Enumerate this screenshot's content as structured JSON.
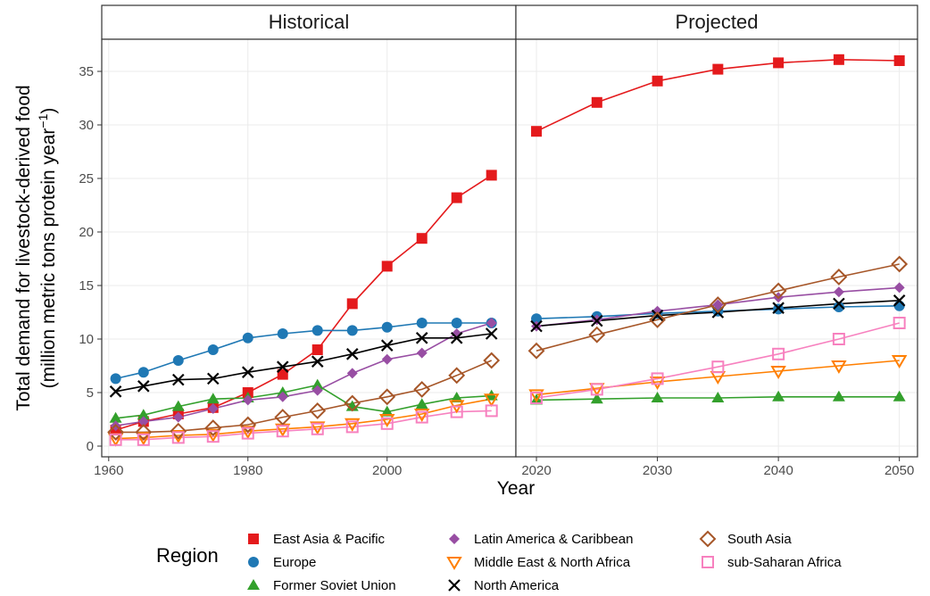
{
  "chart_data": {
    "type": "line",
    "ylabel_line1": "Total demand for livestock-derived food",
    "ylabel_line2": "(million metric tons protein year",
    "ylabel_sup": "−1",
    "ylabel_close": ")",
    "xlabel": "Year",
    "ylim": [
      -1,
      38
    ],
    "y_ticks": [
      0,
      5,
      10,
      15,
      20,
      25,
      30,
      35
    ],
    "grid": true,
    "legend_title": "Region",
    "legend_position": "bottom",
    "panels": [
      {
        "name": "Historical",
        "xlim": [
          1959,
          2018.5
        ],
        "x_ticks": [
          1960,
          1980,
          2000
        ],
        "x": [
          1961,
          1965,
          1970,
          1975,
          1980,
          1985,
          1990,
          1995,
          2000,
          2005,
          2010,
          2015
        ],
        "series": [
          {
            "name": "East Asia & Pacific",
            "values": [
              1.5,
              2.3,
              3.0,
              3.6,
              5.0,
              6.7,
              9.0,
              13.3,
              16.8,
              19.4,
              23.2,
              25.3
            ]
          },
          {
            "name": "Europe",
            "values": [
              6.3,
              6.9,
              8.0,
              9.0,
              10.1,
              10.5,
              10.8,
              10.8,
              11.1,
              11.5,
              11.5,
              11.5
            ]
          },
          {
            "name": "Former Soviet Union",
            "values": [
              2.6,
              2.9,
              3.7,
              4.4,
              4.5,
              5.0,
              5.7,
              3.7,
              3.2,
              3.9,
              4.5,
              4.7
            ]
          },
          {
            "name": "Latin America & Caribbean",
            "values": [
              1.9,
              2.3,
              2.7,
              3.5,
              4.3,
              4.6,
              5.2,
              6.8,
              8.1,
              8.7,
              10.5,
              11.5
            ]
          },
          {
            "name": "Middle East & North Africa",
            "values": [
              0.7,
              0.8,
              1.0,
              1.1,
              1.4,
              1.6,
              1.8,
              2.1,
              2.5,
              3.0,
              3.8,
              4.4
            ]
          },
          {
            "name": "North America",
            "values": [
              5.1,
              5.6,
              6.2,
              6.3,
              6.9,
              7.4,
              7.9,
              8.6,
              9.4,
              10.1,
              10.1,
              10.5
            ]
          },
          {
            "name": "South Asia",
            "values": [
              1.3,
              1.3,
              1.4,
              1.7,
              2.0,
              2.7,
              3.3,
              4.0,
              4.6,
              5.3,
              6.6,
              8.0
            ]
          },
          {
            "name": "sub-Saharan Africa",
            "values": [
              0.6,
              0.6,
              0.8,
              0.9,
              1.2,
              1.4,
              1.6,
              1.8,
              2.1,
              2.7,
              3.2,
              3.3
            ]
          }
        ]
      },
      {
        "name": "Projected",
        "xlim": [
          2018.3,
          2051.5
        ],
        "x_ticks": [
          2020,
          2030,
          2040,
          2050
        ],
        "x": [
          2020,
          2025,
          2030,
          2035,
          2040,
          2045,
          2050
        ],
        "series": [
          {
            "name": "East Asia & Pacific",
            "values": [
              29.4,
              32.1,
              34.1,
              35.2,
              35.8,
              36.1,
              36.0
            ]
          },
          {
            "name": "Europe",
            "values": [
              11.9,
              12.1,
              12.4,
              12.6,
              12.8,
              13.0,
              13.1
            ]
          },
          {
            "name": "Former Soviet Union",
            "values": [
              4.3,
              4.4,
              4.5,
              4.5,
              4.6,
              4.6,
              4.6
            ]
          },
          {
            "name": "Latin America & Caribbean",
            "values": [
              11.2,
              11.8,
              12.6,
              13.2,
              13.9,
              14.4,
              14.8
            ]
          },
          {
            "name": "Middle East & North Africa",
            "values": [
              4.8,
              5.4,
              6.0,
              6.5,
              7.0,
              7.5,
              8.0
            ]
          },
          {
            "name": "North America",
            "values": [
              11.2,
              11.7,
              12.2,
              12.5,
              12.9,
              13.3,
              13.6
            ]
          },
          {
            "name": "South Asia",
            "values": [
              8.9,
              10.4,
              11.8,
              13.2,
              14.5,
              15.8,
              17.0
            ]
          },
          {
            "name": "sub-Saharan Africa",
            "values": [
              4.5,
              5.3,
              6.3,
              7.4,
              8.6,
              10.0,
              11.5
            ]
          }
        ]
      }
    ],
    "series_styles": [
      {
        "name": "East Asia & Pacific",
        "color": "#e41a1c",
        "marker": "filled-square"
      },
      {
        "name": "Europe",
        "color": "#1f78b4",
        "marker": "filled-circle"
      },
      {
        "name": "Former Soviet Union",
        "color": "#33a02c",
        "marker": "filled-triangle"
      },
      {
        "name": "Latin America & Caribbean",
        "color": "#984ea3",
        "marker": "filled-diamond"
      },
      {
        "name": "Middle East & North Africa",
        "color": "#ff7f00",
        "marker": "open-down-triangle"
      },
      {
        "name": "North America",
        "color": "#000000",
        "marker": "cross"
      },
      {
        "name": "South Asia",
        "color": "#a65628",
        "marker": "open-diamond"
      },
      {
        "name": "sub-Saharan Africa",
        "color": "#f781bf",
        "marker": "open-square"
      }
    ],
    "legend_order": [
      "East Asia & Pacific",
      "Europe",
      "Former Soviet Union",
      "Latin America & Caribbean",
      "Middle East & North Africa",
      "North America",
      "South Asia",
      "sub-Saharan Africa"
    ]
  }
}
